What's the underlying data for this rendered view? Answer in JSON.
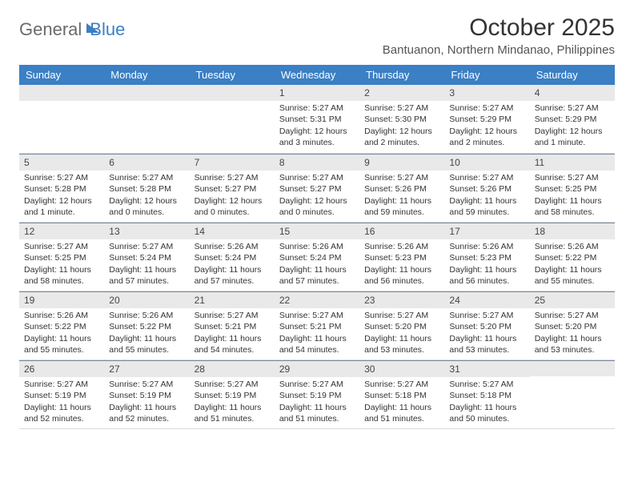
{
  "logo": {
    "part1": "General",
    "part2": "Blue"
  },
  "title": "October 2025",
  "location": "Bantuanon, Northern Mindanao, Philippines",
  "colors": {
    "header_bg": "#3b7fc4",
    "header_text": "#ffffff",
    "daybar_bg": "#e9e9e9",
    "daybar_border": "#7a8aa0",
    "body_text": "#333333"
  },
  "day_names": [
    "Sunday",
    "Monday",
    "Tuesday",
    "Wednesday",
    "Thursday",
    "Friday",
    "Saturday"
  ],
  "weeks": [
    [
      {
        "n": "",
        "sunrise": "",
        "sunset": "",
        "daylight": ""
      },
      {
        "n": "",
        "sunrise": "",
        "sunset": "",
        "daylight": ""
      },
      {
        "n": "",
        "sunrise": "",
        "sunset": "",
        "daylight": ""
      },
      {
        "n": "1",
        "sunrise": "5:27 AM",
        "sunset": "5:31 PM",
        "daylight": "12 hours and 3 minutes."
      },
      {
        "n": "2",
        "sunrise": "5:27 AM",
        "sunset": "5:30 PM",
        "daylight": "12 hours and 2 minutes."
      },
      {
        "n": "3",
        "sunrise": "5:27 AM",
        "sunset": "5:29 PM",
        "daylight": "12 hours and 2 minutes."
      },
      {
        "n": "4",
        "sunrise": "5:27 AM",
        "sunset": "5:29 PM",
        "daylight": "12 hours and 1 minute."
      }
    ],
    [
      {
        "n": "5",
        "sunrise": "5:27 AM",
        "sunset": "5:28 PM",
        "daylight": "12 hours and 1 minute."
      },
      {
        "n": "6",
        "sunrise": "5:27 AM",
        "sunset": "5:28 PM",
        "daylight": "12 hours and 0 minutes."
      },
      {
        "n": "7",
        "sunrise": "5:27 AM",
        "sunset": "5:27 PM",
        "daylight": "12 hours and 0 minutes."
      },
      {
        "n": "8",
        "sunrise": "5:27 AM",
        "sunset": "5:27 PM",
        "daylight": "12 hours and 0 minutes."
      },
      {
        "n": "9",
        "sunrise": "5:27 AM",
        "sunset": "5:26 PM",
        "daylight": "11 hours and 59 minutes."
      },
      {
        "n": "10",
        "sunrise": "5:27 AM",
        "sunset": "5:26 PM",
        "daylight": "11 hours and 59 minutes."
      },
      {
        "n": "11",
        "sunrise": "5:27 AM",
        "sunset": "5:25 PM",
        "daylight": "11 hours and 58 minutes."
      }
    ],
    [
      {
        "n": "12",
        "sunrise": "5:27 AM",
        "sunset": "5:25 PM",
        "daylight": "11 hours and 58 minutes."
      },
      {
        "n": "13",
        "sunrise": "5:27 AM",
        "sunset": "5:24 PM",
        "daylight": "11 hours and 57 minutes."
      },
      {
        "n": "14",
        "sunrise": "5:26 AM",
        "sunset": "5:24 PM",
        "daylight": "11 hours and 57 minutes."
      },
      {
        "n": "15",
        "sunrise": "5:26 AM",
        "sunset": "5:24 PM",
        "daylight": "11 hours and 57 minutes."
      },
      {
        "n": "16",
        "sunrise": "5:26 AM",
        "sunset": "5:23 PM",
        "daylight": "11 hours and 56 minutes."
      },
      {
        "n": "17",
        "sunrise": "5:26 AM",
        "sunset": "5:23 PM",
        "daylight": "11 hours and 56 minutes."
      },
      {
        "n": "18",
        "sunrise": "5:26 AM",
        "sunset": "5:22 PM",
        "daylight": "11 hours and 55 minutes."
      }
    ],
    [
      {
        "n": "19",
        "sunrise": "5:26 AM",
        "sunset": "5:22 PM",
        "daylight": "11 hours and 55 minutes."
      },
      {
        "n": "20",
        "sunrise": "5:26 AM",
        "sunset": "5:22 PM",
        "daylight": "11 hours and 55 minutes."
      },
      {
        "n": "21",
        "sunrise": "5:27 AM",
        "sunset": "5:21 PM",
        "daylight": "11 hours and 54 minutes."
      },
      {
        "n": "22",
        "sunrise": "5:27 AM",
        "sunset": "5:21 PM",
        "daylight": "11 hours and 54 minutes."
      },
      {
        "n": "23",
        "sunrise": "5:27 AM",
        "sunset": "5:20 PM",
        "daylight": "11 hours and 53 minutes."
      },
      {
        "n": "24",
        "sunrise": "5:27 AM",
        "sunset": "5:20 PM",
        "daylight": "11 hours and 53 minutes."
      },
      {
        "n": "25",
        "sunrise": "5:27 AM",
        "sunset": "5:20 PM",
        "daylight": "11 hours and 53 minutes."
      }
    ],
    [
      {
        "n": "26",
        "sunrise": "5:27 AM",
        "sunset": "5:19 PM",
        "daylight": "11 hours and 52 minutes."
      },
      {
        "n": "27",
        "sunrise": "5:27 AM",
        "sunset": "5:19 PM",
        "daylight": "11 hours and 52 minutes."
      },
      {
        "n": "28",
        "sunrise": "5:27 AM",
        "sunset": "5:19 PM",
        "daylight": "11 hours and 51 minutes."
      },
      {
        "n": "29",
        "sunrise": "5:27 AM",
        "sunset": "5:19 PM",
        "daylight": "11 hours and 51 minutes."
      },
      {
        "n": "30",
        "sunrise": "5:27 AM",
        "sunset": "5:18 PM",
        "daylight": "11 hours and 51 minutes."
      },
      {
        "n": "31",
        "sunrise": "5:27 AM",
        "sunset": "5:18 PM",
        "daylight": "11 hours and 50 minutes."
      },
      {
        "n": "",
        "sunrise": "",
        "sunset": "",
        "daylight": ""
      }
    ]
  ],
  "labels": {
    "sunrise": "Sunrise:",
    "sunset": "Sunset:",
    "daylight": "Daylight:"
  }
}
